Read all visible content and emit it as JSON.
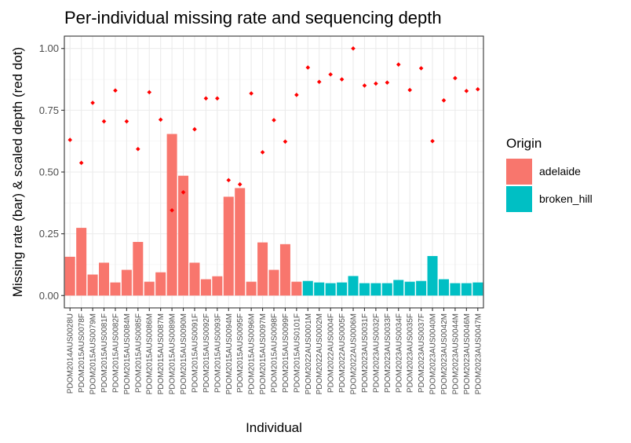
{
  "chart_data": {
    "type": "bar",
    "title": "Per-individual missing rate and sequencing depth",
    "xlabel": "Individual",
    "ylabel": "Missing rate (bar) & scaled depth (red dot)",
    "ylim": [
      -0.05,
      1.05
    ],
    "yticks": [
      0.0,
      0.25,
      0.5,
      0.75,
      1.0
    ],
    "ytick_labels": [
      "0.00",
      "0.25",
      "0.50",
      "0.75",
      "1.00"
    ],
    "grid": true,
    "legend": {
      "title": "Origin",
      "position": "right",
      "entries": [
        {
          "label": "adelaide",
          "color": "#F8766D"
        },
        {
          "label": "broken_hill",
          "color": "#00BFC4"
        }
      ]
    },
    "dot_color": "#FF0000",
    "categories": [
      "PDOM2014AUS0028U",
      "PDOM2015AUS0078F",
      "PDOM2015AUS0079M",
      "PDOM2015AUS0081F",
      "PDOM2015AUS0082F",
      "PDOM2015AUS0084M",
      "PDOM2015AUS0085F",
      "PDOM2015AUS0086M",
      "PDOM2015AUS0087M",
      "PDOM2015AUS0089M",
      "PDOM2015AUS0090M",
      "PDOM2015AUS0091F",
      "PDOM2015AUS0092F",
      "PDOM2015AUS0093F",
      "PDOM2015AUS0094M",
      "PDOM2015AUS0095F",
      "PDOM2015AUS0096M",
      "PDOM2015AUS0097M",
      "PDOM2015AUS0098F",
      "PDOM2015AUS0099F",
      "PDOM2015AUS0101F",
      "PDOM2022AUS0001M",
      "PDOM2022AUS0002M",
      "PDOM2022AUS0004F",
      "PDOM2022AUS0005F",
      "PDOM2022AUS0006M",
      "PDOM2023AUS0031F",
      "PDOM2023AUS0032F",
      "PDOM2023AUS0033F",
      "PDOM2023AUS0034F",
      "PDOM2023AUS0035F",
      "PDOM2023AUS0037F",
      "PDOM2023AUS0040M",
      "PDOM2023AUS0042M",
      "PDOM2023AUS0044M",
      "PDOM2023AUS0046M",
      "PDOM2023AUS0047M"
    ],
    "origin": [
      "adelaide",
      "adelaide",
      "adelaide",
      "adelaide",
      "adelaide",
      "adelaide",
      "adelaide",
      "adelaide",
      "adelaide",
      "adelaide",
      "adelaide",
      "adelaide",
      "adelaide",
      "adelaide",
      "adelaide",
      "adelaide",
      "adelaide",
      "adelaide",
      "adelaide",
      "adelaide",
      "adelaide",
      "broken_hill",
      "broken_hill",
      "broken_hill",
      "broken_hill",
      "broken_hill",
      "broken_hill",
      "broken_hill",
      "broken_hill",
      "broken_hill",
      "broken_hill",
      "broken_hill",
      "broken_hill",
      "broken_hill",
      "broken_hill",
      "broken_hill",
      "broken_hill"
    ],
    "series": [
      {
        "values": [
          0.157,
          0.274,
          0.085,
          0.133,
          0.053,
          0.104,
          0.217,
          0.056,
          0.094,
          0.654,
          0.485,
          0.133,
          0.066,
          0.078,
          0.4,
          0.435,
          0.056,
          0.215,
          0.104,
          0.208,
          0.056,
          0.059,
          0.053,
          0.05,
          0.053,
          0.079,
          0.05,
          0.05,
          0.05,
          0.063,
          0.056,
          0.059,
          0.16,
          0.066,
          0.05,
          0.05,
          0.053
        ]
      },
      {
        "values": [
          0.63,
          0.537,
          0.78,
          0.705,
          0.83,
          0.705,
          0.593,
          0.823,
          0.712,
          0.345,
          0.418,
          0.673,
          0.798,
          0.798,
          0.467,
          0.45,
          0.818,
          0.58,
          0.71,
          0.623,
          0.812,
          0.923,
          0.865,
          0.895,
          0.875,
          1.0,
          0.85,
          0.858,
          0.862,
          0.935,
          0.832,
          0.92,
          0.625,
          0.79,
          0.88,
          0.828,
          0.835
        ]
      }
    ]
  }
}
